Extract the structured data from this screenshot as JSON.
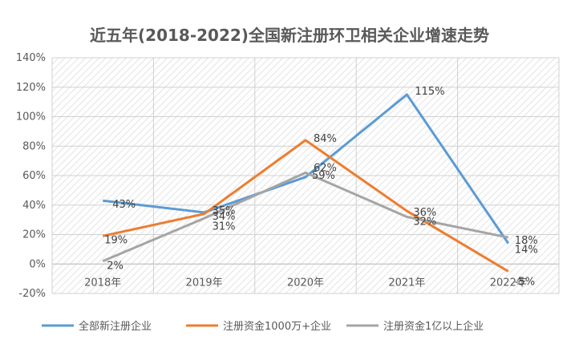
{
  "chart_data": {
    "type": "line",
    "title": "近五年(2018-2022)全国新注册环卫相关企业增速走势",
    "categories": [
      "2018年",
      "2019年",
      "2020年",
      "2021年",
      "2022年"
    ],
    "ylim": [
      -20,
      140
    ],
    "yticks": [
      -20,
      0,
      20,
      40,
      60,
      80,
      100,
      120,
      140
    ],
    "ytick_labels": [
      "-20%",
      "0%",
      "20%",
      "40%",
      "60%",
      "80%",
      "100%",
      "120%",
      "140%"
    ],
    "grid": true,
    "legend_position": "bottom",
    "series": [
      {
        "name": "全部新注册企业",
        "color": "#5B9BD5",
        "values": [
          43,
          35,
          59,
          115,
          14
        ],
        "labels": [
          "43%",
          "35%",
          "59%",
          "115%",
          "14%"
        ]
      },
      {
        "name": "注册资金1000万+企业",
        "color": "#ED7D31",
        "values": [
          19,
          34,
          84,
          36,
          -5
        ],
        "labels": [
          "19%",
          "34%",
          "84%",
          "36%",
          "-5%"
        ]
      },
      {
        "name": "注册资金1亿以上企业",
        "color": "#A5A5A5",
        "values": [
          2,
          31,
          62,
          32,
          18
        ],
        "labels": [
          "2%",
          "31%",
          "62%",
          "32%",
          "18%"
        ]
      }
    ]
  }
}
